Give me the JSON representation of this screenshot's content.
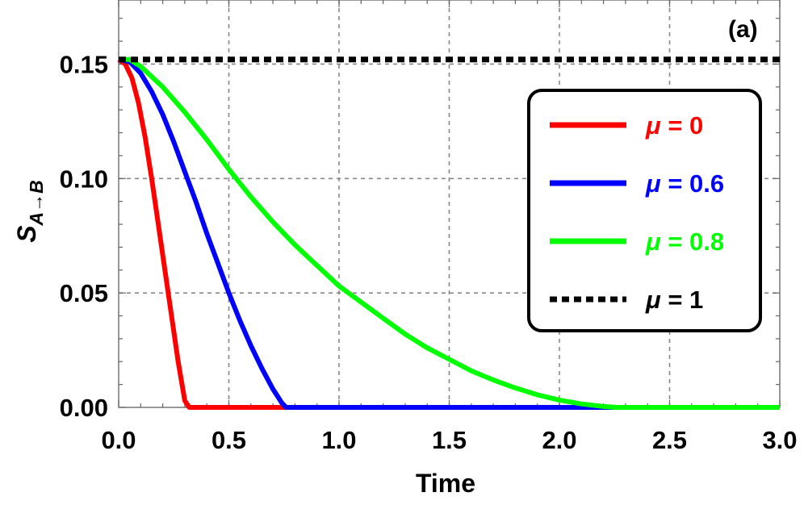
{
  "chart_data": {
    "type": "line",
    "panel_label": "(a)",
    "xlabel": "Time",
    "ylabel_main": "S",
    "ylabel_sub": "A→B",
    "xlim": [
      0,
      3.0
    ],
    "ylim": [
      0,
      0.178
    ],
    "x_ticks": [
      "0.0",
      "0.5",
      "1.0",
      "1.5",
      "2.0",
      "2.5",
      "3.0"
    ],
    "y_ticks": [
      "0.00",
      "0.05",
      "0.10",
      "0.15"
    ],
    "grid": true,
    "legend_position": "right",
    "series": [
      {
        "name": "μ = 0",
        "mu_symbol": "μ",
        "mu_value": "= 0",
        "color": "#ff0000",
        "style": "solid",
        "x": [
          0.0,
          0.03,
          0.06,
          0.09,
          0.12,
          0.15,
          0.18,
          0.21,
          0.24,
          0.27,
          0.3,
          0.32,
          3.0
        ],
        "y": [
          0.152,
          0.15,
          0.144,
          0.133,
          0.118,
          0.1,
          0.08,
          0.06,
          0.04,
          0.02,
          0.003,
          0.0,
          0.0
        ]
      },
      {
        "name": "μ = 0.6",
        "mu_symbol": "μ",
        "mu_value": "= 0.6",
        "color": "#0000ff",
        "style": "solid",
        "x": [
          0.0,
          0.05,
          0.1,
          0.15,
          0.2,
          0.25,
          0.3,
          0.35,
          0.4,
          0.45,
          0.5,
          0.55,
          0.6,
          0.65,
          0.7,
          0.74,
          0.76,
          3.0
        ],
        "y": [
          0.152,
          0.151,
          0.146,
          0.138,
          0.128,
          0.116,
          0.103,
          0.09,
          0.076,
          0.063,
          0.05,
          0.038,
          0.027,
          0.017,
          0.008,
          0.002,
          0.0,
          0.0
        ]
      },
      {
        "name": "μ = 0.8",
        "mu_symbol": "μ",
        "mu_value": "= 0.8",
        "color": "#00ff00",
        "style": "solid",
        "x": [
          0.0,
          0.05,
          0.1,
          0.2,
          0.3,
          0.4,
          0.5,
          0.6,
          0.7,
          0.8,
          0.9,
          1.0,
          1.1,
          1.2,
          1.3,
          1.4,
          1.5,
          1.6,
          1.7,
          1.8,
          1.9,
          2.0,
          2.1,
          2.2,
          2.26,
          3.0
        ],
        "y": [
          0.152,
          0.152,
          0.149,
          0.14,
          0.129,
          0.117,
          0.104,
          0.092,
          0.081,
          0.071,
          0.062,
          0.053,
          0.046,
          0.039,
          0.032,
          0.026,
          0.021,
          0.016,
          0.012,
          0.0085,
          0.0055,
          0.0032,
          0.0015,
          0.0004,
          0.0,
          0.0
        ]
      },
      {
        "name": "μ = 1",
        "mu_symbol": "μ",
        "mu_value": "= 1",
        "color": "#000000",
        "style": "dotted",
        "x": [
          0.0,
          3.0
        ],
        "y": [
          0.152,
          0.152
        ]
      }
    ]
  }
}
